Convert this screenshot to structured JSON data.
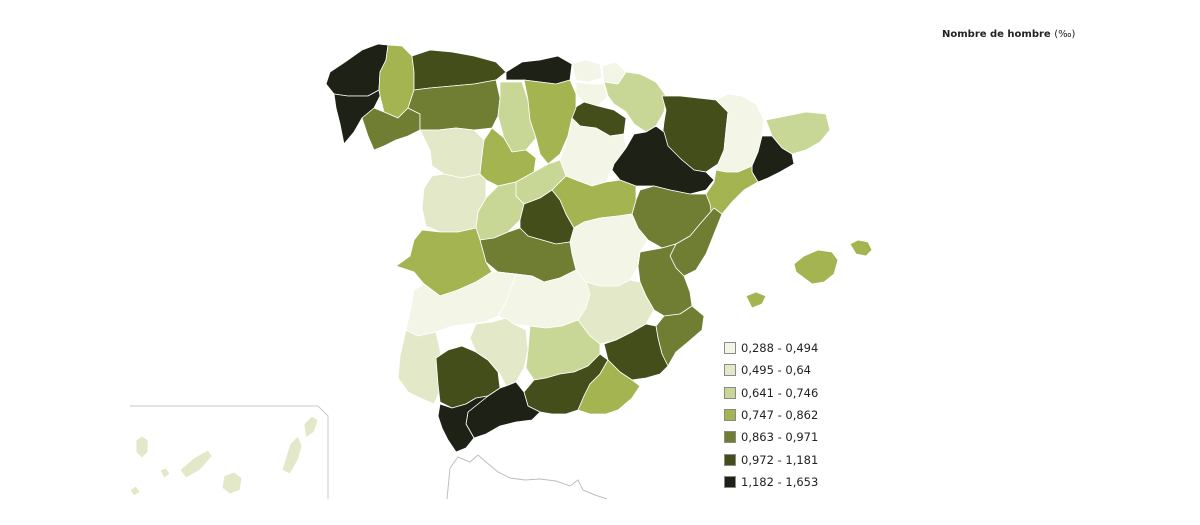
{
  "legend": {
    "title": "Nombre de hombre",
    "unit": "(‰)",
    "classes": [
      {
        "label": "0,288 - 0,494",
        "color": "#f3f5e6"
      },
      {
        "label": "0,495 - 0,64",
        "color": "#e3e9c8"
      },
      {
        "label": "0,641 - 0,746",
        "color": "#c9d796"
      },
      {
        "label": "0,747 - 0,862",
        "color": "#a3b450"
      },
      {
        "label": "0,863 - 0,971",
        "color": "#6f7e32"
      },
      {
        "label": "0,972 - 1,181",
        "color": "#434e1b"
      },
      {
        "label": "1,182 - 1,653",
        "color": "#1e2116"
      }
    ]
  }
}
